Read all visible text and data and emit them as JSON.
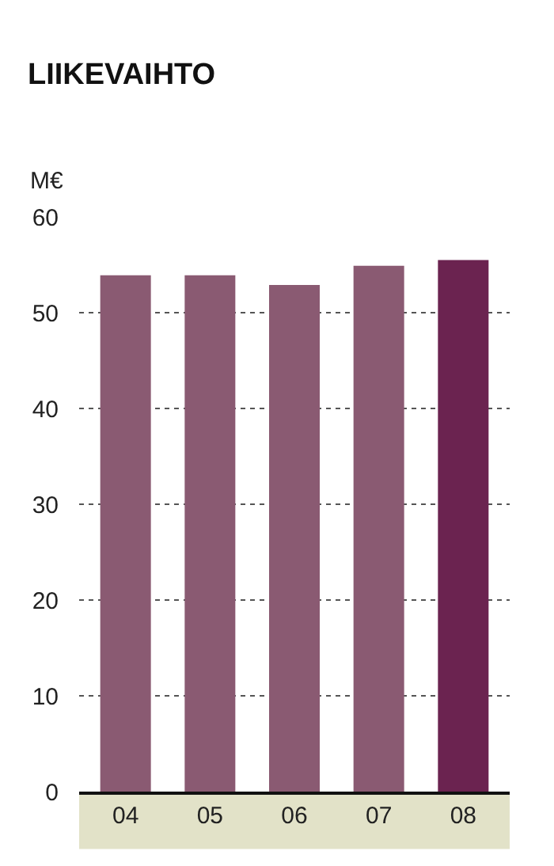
{
  "chart_data": {
    "type": "bar",
    "title": "LIIKEVAIHTO",
    "ylabel": "M€",
    "categories": [
      "04",
      "05",
      "06",
      "07",
      "08"
    ],
    "values": [
      53.9,
      53.9,
      52.9,
      54.9,
      55.5
    ],
    "colors": [
      "#8a5a72",
      "#8a5a72",
      "#8a5a72",
      "#8a5a72",
      "#6b2350"
    ],
    "ylim": [
      0,
      60
    ],
    "yticks": [
      0,
      10,
      20,
      30,
      40,
      50,
      60
    ],
    "grid": "y",
    "legend": false
  }
}
